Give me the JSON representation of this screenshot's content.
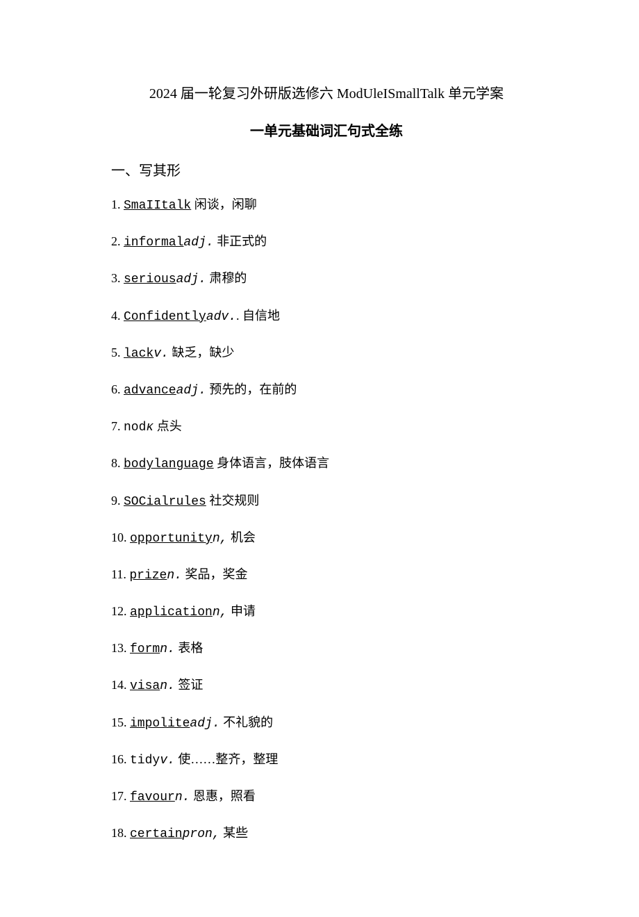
{
  "title": "2024 届一轮复习外研版选修六 ModUleISmallTalk 单元学案",
  "subtitle": "一单元基础词汇句式全练",
  "section_head": "一、写其形",
  "items": [
    {
      "num": "1.",
      "term": "SmaIItalk",
      "pos": "",
      "def": " 闲谈，闲聊",
      "underline": true
    },
    {
      "num": "2.",
      "term": "informal",
      "pos": "adj.",
      "def": " 非正式的",
      "underline": true
    },
    {
      "num": "3.",
      "term": "serious",
      "pos": "adj.",
      "def": " 肃穆的",
      "underline": true
    },
    {
      "num": "4.",
      "term": "Confidently",
      "pos": "adv.",
      "def": ". 自信地",
      "underline": true
    },
    {
      "num": "5.",
      "term": "lack",
      "pos": "v.",
      "def": " 缺乏，缺少",
      "underline": true
    },
    {
      "num": "6.",
      "term": "advance",
      "pos": "adj.",
      "def": " 预先的，在前的",
      "underline": true
    },
    {
      "num": "7.",
      "term": "nod",
      "pos": "κ",
      "def": " 点头",
      "underline": false
    },
    {
      "num": "8.",
      "term": "bodylanguage",
      "pos": "",
      "def": " 身体语言，肢体语言",
      "underline": true
    },
    {
      "num": "9.",
      "term": "SOCialrules",
      "pos": "",
      "def": " 社交规则",
      "underline": true
    },
    {
      "num": "10.",
      "term": "opportunity",
      "pos": "n,",
      "def": " 机会",
      "underline": true
    },
    {
      "num": "11.",
      "term": "prize",
      "pos": "n.",
      "def": " 奖品，奖金",
      "underline": true
    },
    {
      "num": "12.",
      "term": "application",
      "pos": "n,",
      "def": " 申请",
      "underline": true
    },
    {
      "num": "13.",
      "term": "form",
      "pos": "n.",
      "def": " 表格",
      "underline": true
    },
    {
      "num": "14.",
      "term": "visa",
      "pos": "n.",
      "def": " 签证",
      "underline": true
    },
    {
      "num": "15.",
      "term": "impolite",
      "pos": "adj.",
      "def": " 不礼貌的",
      "underline": true
    },
    {
      "num": "16.",
      "term": "tidy",
      "pos": "v.",
      "def": " 使……整齐，整理",
      "underline": false
    },
    {
      "num": "17.",
      "term": "favour",
      "pos": "n.",
      "def": " 恩惠，照看",
      "underline": true
    },
    {
      "num": "18.",
      "term": "certain",
      "pos": "pron,",
      "def": " 某些",
      "underline": true
    }
  ]
}
